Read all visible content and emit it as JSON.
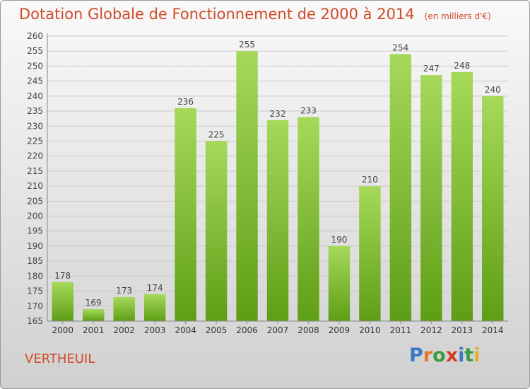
{
  "title": "Dotation Globale de Fonctionnement de 2000 à 2014",
  "subtitle": "(en milliers d'€)",
  "commune": "VERTHEUIL",
  "logo": {
    "text": "Proxiti",
    "letters": [
      "P",
      "r",
      "o",
      "x",
      "i",
      "t",
      "i"
    ],
    "colors": [
      "#3a78c8",
      "#e8742a",
      "#3a9b3c",
      "#d63a2a",
      "#3a78c8",
      "#3a9b3c",
      "#e8b02a"
    ]
  },
  "colors": {
    "bar_light": "#a6d95a",
    "bar_dark": "#5e9e16",
    "title": "#d04a2a",
    "grid": "#c9c9c9"
  },
  "chart_data": {
    "type": "bar",
    "categories": [
      "2000",
      "2001",
      "2002",
      "2003",
      "2004",
      "2005",
      "2006",
      "2007",
      "2008",
      "2009",
      "2010",
      "2011",
      "2012",
      "2013",
      "2014"
    ],
    "values": [
      178,
      169,
      173,
      174,
      236,
      225,
      255,
      232,
      233,
      190,
      210,
      254,
      247,
      248,
      240
    ],
    "ylim": [
      165,
      260
    ],
    "ytick_step": 5,
    "grid": true
  }
}
